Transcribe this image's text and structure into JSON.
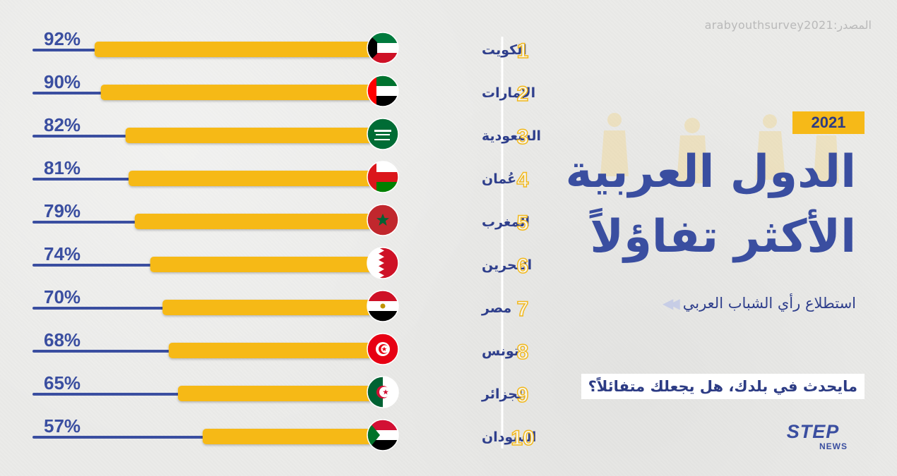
{
  "header": {
    "source": "المصدر:arabyouthsurvey2021",
    "year": "2021",
    "title_line1": "الدول العربية",
    "title_line2": "الأكثر تفاؤلاً",
    "subtitle": "استطلاع رأي الشباب العربي",
    "question": "مايحدث في بلدك، هل يجعلك متفائلاً؟"
  },
  "logo": {
    "brand": "STEP",
    "sub": "NEWS"
  },
  "colors": {
    "bar": "#f6b918",
    "line": "#3a4ea0",
    "text": "#2f3f8c",
    "rank": "#f2b81d"
  },
  "chart_data": {
    "type": "bar",
    "orientation": "horizontal",
    "title": "الدول العربية الأكثر تفاؤلاً",
    "unit": "%",
    "xlim": [
      0,
      100
    ],
    "categories": [
      "الكويت",
      "الإمارات",
      "السعودية",
      "عُمان",
      "المغرب",
      "البحرين",
      "مصر",
      "تونس",
      "الجزائر",
      "السودان"
    ],
    "ranks": [
      "1",
      "2",
      "3",
      "4",
      "5",
      "6",
      "7",
      "8",
      "9",
      "10"
    ],
    "values": [
      92,
      90,
      82,
      81,
      79,
      74,
      70,
      68,
      65,
      57
    ],
    "value_labels": [
      "92%",
      "90%",
      "82%",
      "81%",
      "79%",
      "74%",
      "70%",
      "68%",
      "65%",
      "57%"
    ],
    "flags": [
      "kuwait-flag",
      "uae-flag",
      "saudi-flag",
      "oman-flag",
      "morocco-flag",
      "bahrain-flag",
      "egypt-flag",
      "tunisia-flag",
      "algeria-flag",
      "sudan-flag"
    ]
  }
}
